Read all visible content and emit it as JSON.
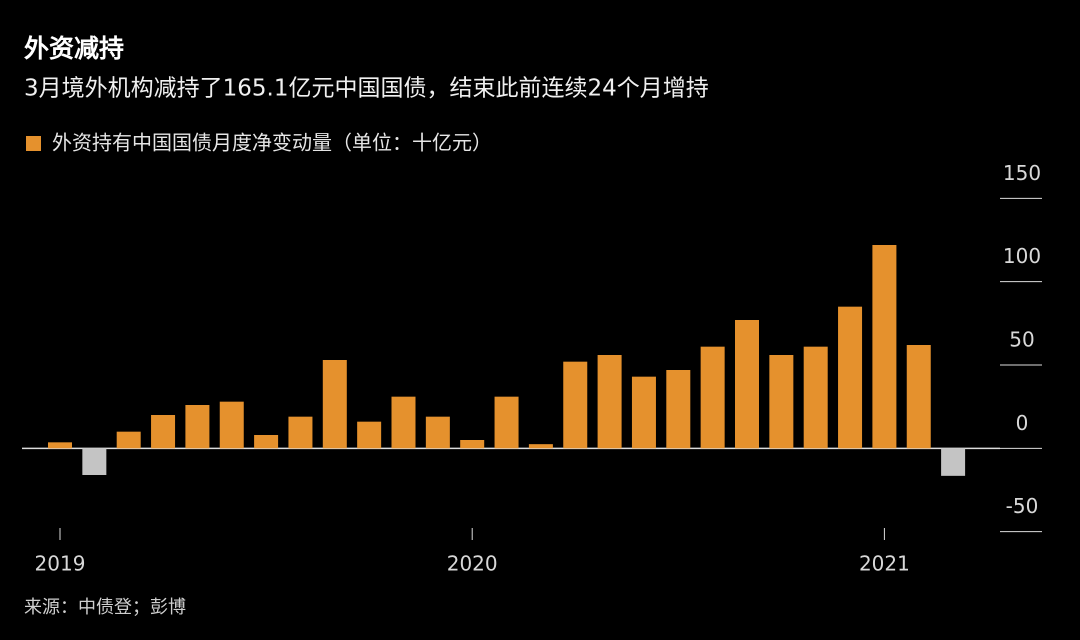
{
  "chart_data": {
    "type": "bar",
    "title": "外资减持",
    "subtitle": "3月境外机构减持了165.1亿元中国国债，结束此前连续24个月增持",
    "legend_label": "外资持有中国国债月度净变动量（单位：十亿元）",
    "source": "来源：中债登；彭博",
    "categories": [
      "2019",
      null,
      null,
      null,
      null,
      null,
      null,
      null,
      null,
      null,
      null,
      null,
      "2020",
      null,
      null,
      null,
      null,
      null,
      null,
      null,
      null,
      null,
      null,
      null,
      "2021",
      null,
      null
    ],
    "values": [
      3.6,
      -16,
      10,
      20,
      26,
      28,
      8,
      19,
      53,
      16,
      31,
      19,
      5,
      31,
      2.5,
      52,
      56,
      43,
      47,
      61,
      77,
      56,
      61,
      85,
      122,
      62,
      -16.51
    ],
    "color": "#e5912d",
    "negative_color": "#c4c4c4",
    "ylim": [
      -55,
      167
    ],
    "yticks": [
      -50,
      0,
      50,
      100,
      150
    ]
  }
}
